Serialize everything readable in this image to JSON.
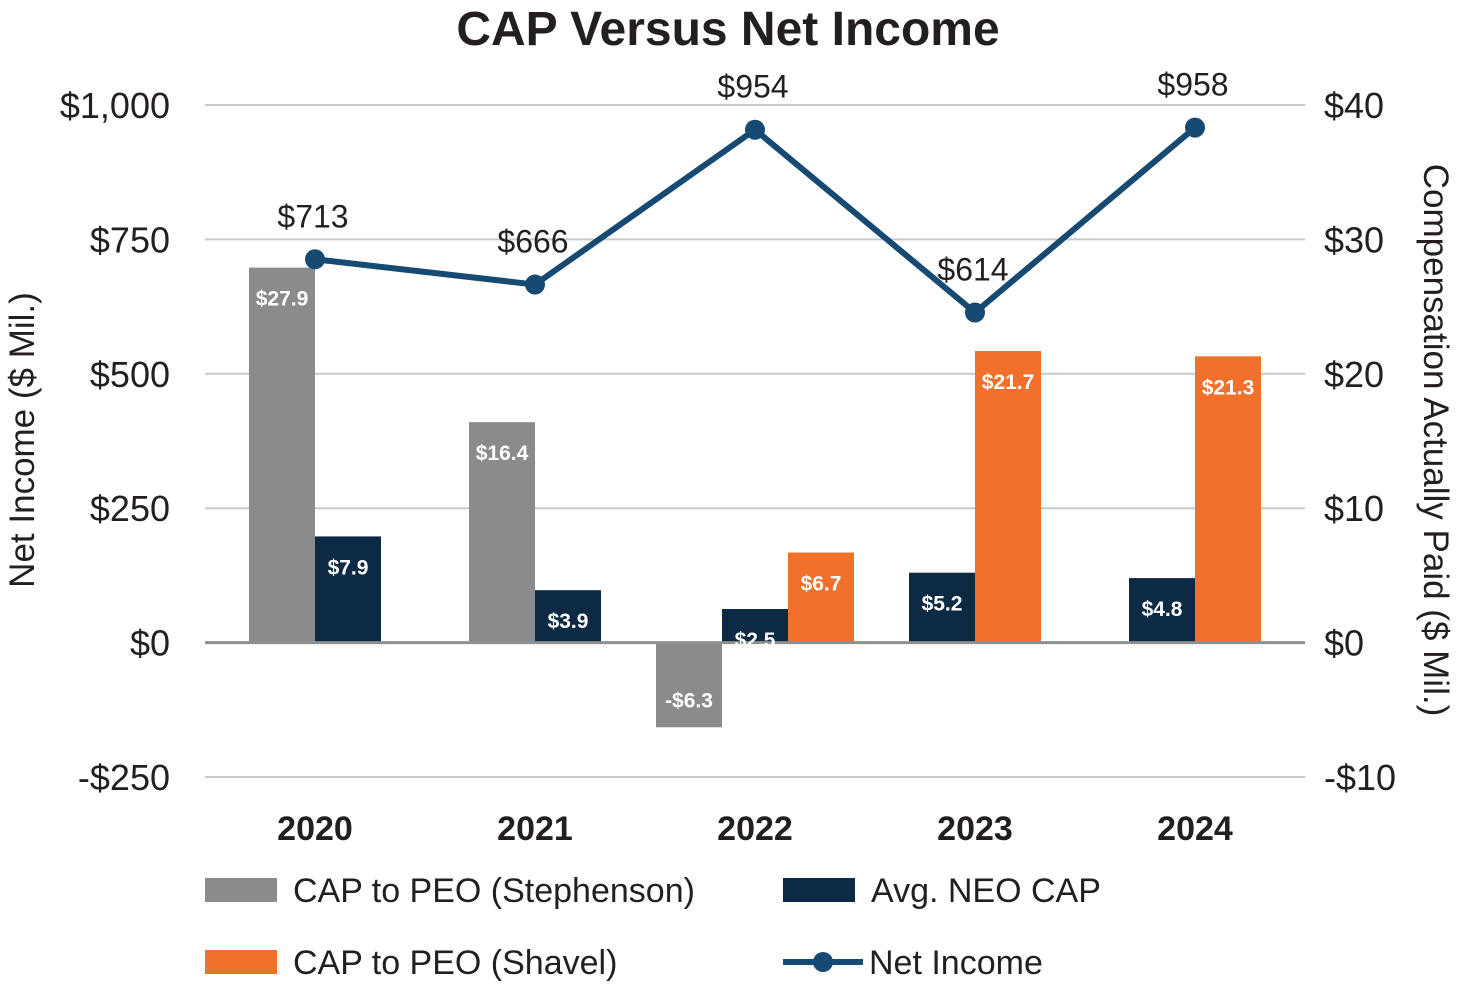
{
  "chart_data": {
    "type": "bar",
    "title": "CAP Versus Net Income",
    "categories": [
      "2020",
      "2021",
      "2022",
      "2023",
      "2024"
    ],
    "left_axis": {
      "label": "Net Income ($ Mil.)",
      "range": [
        -250,
        1000
      ],
      "ticks": [
        1000,
        750,
        500,
        250,
        0,
        -250
      ],
      "tick_labels": [
        "$1,000",
        "$750",
        "$500",
        "$250",
        "$0",
        "-$250"
      ]
    },
    "right_axis": {
      "label": "Compensation Actually Paid ($ Mil.)",
      "range": [
        -10,
        40
      ],
      "ticks": [
        40,
        30,
        20,
        10,
        0,
        -10
      ],
      "tick_labels": [
        "$40",
        "$30",
        "$20",
        "$10",
        "$0",
        "-$10"
      ]
    },
    "grid": true,
    "series": [
      {
        "name": "CAP to PEO (Stephenson)",
        "type": "bar",
        "axis": "right",
        "color": "#8a8b8d",
        "values": [
          27.9,
          16.4,
          -6.3,
          null,
          null
        ],
        "labels": [
          "$27.9",
          "$16.4",
          "-$6.3",
          null,
          null
        ]
      },
      {
        "name": "Avg. NEO CAP",
        "type": "bar",
        "axis": "right",
        "color": "#0d2a45",
        "values": [
          7.9,
          3.9,
          2.5,
          5.2,
          4.8
        ],
        "labels": [
          "$7.9",
          "$3.9",
          "$2.5",
          "$5.2",
          "$4.8"
        ]
      },
      {
        "name": "CAP to PEO (Shavel)",
        "type": "bar",
        "axis": "right",
        "color": "#f1702b",
        "values": [
          null,
          null,
          6.7,
          21.7,
          21.3
        ],
        "labels": [
          null,
          null,
          "$6.7",
          "$21.7",
          "$21.3"
        ]
      },
      {
        "name": "Net Income",
        "type": "line",
        "axis": "left",
        "color": "#164a72",
        "values": [
          713,
          666,
          954,
          614,
          958
        ],
        "labels": [
          "$713",
          "$666",
          "$954",
          "$614",
          "$958"
        ]
      }
    ],
    "legend": {
      "placement": "bottom",
      "order": [
        "CAP to PEO (Stephenson)",
        "Avg. NEO CAP",
        "CAP to PEO (Shavel)",
        "Net Income"
      ]
    }
  }
}
